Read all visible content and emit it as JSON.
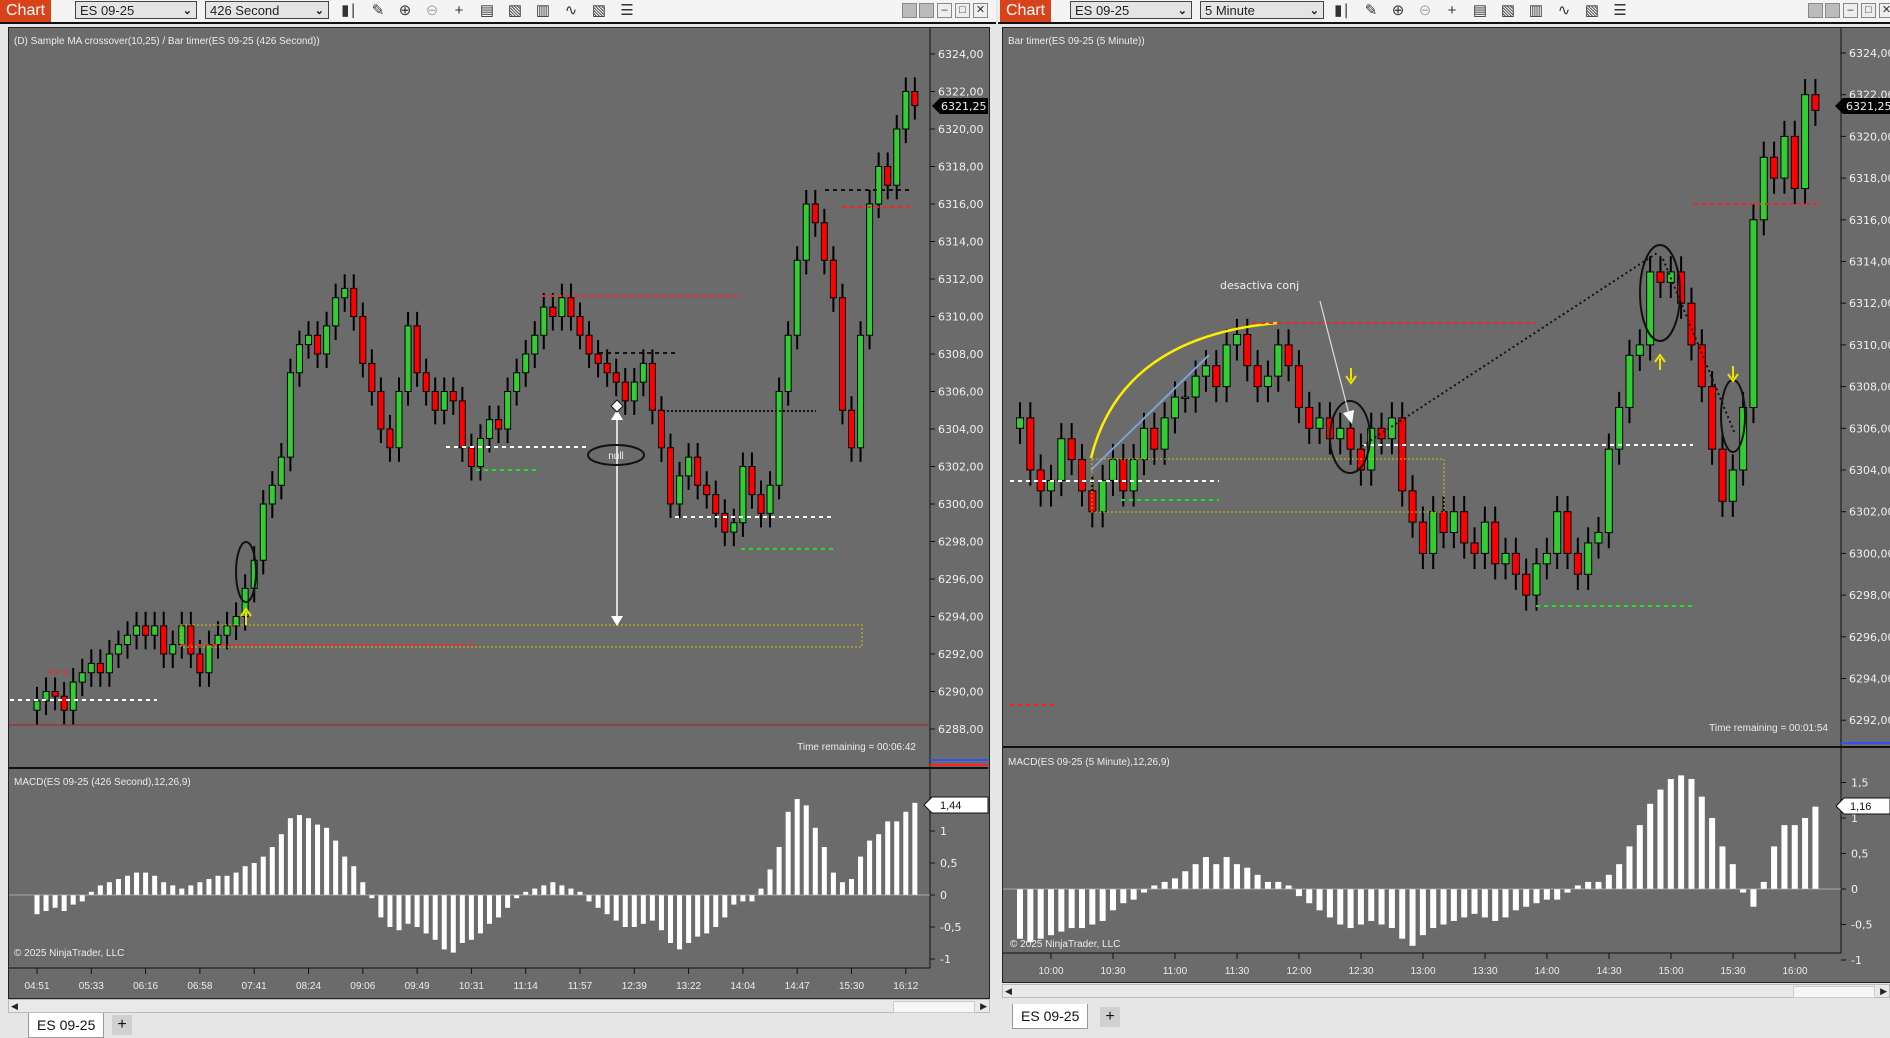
{
  "left": {
    "toolbar": {
      "app": "Chart",
      "instrument": "ES 09-25",
      "interval": "426 Second"
    },
    "title": "(D) Sample MA crossover(10,25) / Bar timer(ES 09-25 (426 Second))",
    "time_remaining": "Time remaining = 00:06:42",
    "macd_title": "MACD(ES 09-25 (426 Second),12,26,9)",
    "copyright": "© 2025 NinjaTrader, LLC",
    "last_price": "6321,25",
    "macd_last": "1,44",
    "annotation": "null",
    "tab": "ES 09-25",
    "add_tab": "+",
    "price_ticks": [
      "6324,00",
      "6322,00",
      "6320,00",
      "6318,00",
      "6316,00",
      "6314,00",
      "6312,00",
      "6310,00",
      "6308,00",
      "6306,00",
      "6304,00",
      "6302,00",
      "6300,00",
      "6298,00",
      "6296,00",
      "6294,00",
      "6292,00",
      "6290,00",
      "6288,00"
    ],
    "macd_ticks": [
      "1",
      "0,5",
      "0",
      "-0,5",
      "-1"
    ],
    "time_ticks": [
      "04:51",
      "05:33",
      "06:16",
      "06:58",
      "07:41",
      "08:24",
      "09:06",
      "09:49",
      "10:31",
      "11:14",
      "11:57",
      "12:39",
      "13:22",
      "14:04",
      "14:47",
      "15:30",
      "16:12"
    ],
    "closes": [
      6289.5,
      6290,
      6289.75,
      6289,
      6290.5,
      6291,
      6291.5,
      6291,
      6292,
      6292.5,
      6293,
      6293.5,
      6293,
      6293.5,
      6292,
      6292.5,
      6293.5,
      6292,
      6291,
      6292.5,
      6293,
      6293.5,
      6294,
      6295.5,
      6297,
      6300,
      6301,
      6302.5,
      6307,
      6308.5,
      6309,
      6308,
      6309.5,
      6311,
      6311.5,
      6310,
      6307.5,
      6306,
      6304,
      6303,
      6306,
      6309.5,
      6307,
      6306,
      6305,
      6306,
      6305.5,
      6303,
      6302,
      6303.5,
      6304.5,
      6304,
      6306,
      6307,
      6308,
      6309,
      6310.5,
      6310,
      6311,
      6310,
      6309,
      6308,
      6307.5,
      6307,
      6306.5,
      6305.5,
      6306.5,
      6307.5,
      6305,
      6303,
      6300,
      6301.5,
      6302.5,
      6301,
      6300.5,
      6299.5,
      6298.5,
      6299,
      6302,
      6300.5,
      6299.5,
      6301,
      6306,
      6309,
      6313,
      6316,
      6315,
      6313,
      6311,
      6305,
      6303,
      6309,
      6316,
      6318,
      6317,
      6320,
      6322,
      6321.25
    ],
    "macd": [
      -0.3,
      -0.25,
      -0.2,
      -0.25,
      -0.15,
      -0.1,
      0.05,
      0.15,
      0.2,
      0.25,
      0.3,
      0.35,
      0.35,
      0.3,
      0.2,
      0.15,
      0.1,
      0.15,
      0.2,
      0.25,
      0.3,
      0.3,
      0.35,
      0.45,
      0.5,
      0.6,
      0.75,
      0.95,
      1.2,
      1.25,
      1.2,
      1.1,
      1.05,
      0.85,
      0.6,
      0.45,
      0.2,
      -0.05,
      -0.35,
      -0.5,
      -0.55,
      -0.45,
      -0.5,
      -0.6,
      -0.7,
      -0.85,
      -0.9,
      -0.75,
      -0.7,
      -0.6,
      -0.45,
      -0.35,
      -0.2,
      -0.05,
      0.05,
      0.1,
      0.15,
      0.2,
      0.15,
      0.1,
      0.05,
      -0.1,
      -0.2,
      -0.3,
      -0.4,
      -0.5,
      -0.5,
      -0.45,
      -0.4,
      -0.55,
      -0.75,
      -0.85,
      -0.75,
      -0.65,
      -0.6,
      -0.5,
      -0.35,
      -0.15,
      -0.1,
      -0.1,
      0.1,
      0.4,
      0.75,
      1.3,
      1.5,
      1.4,
      1.05,
      0.75,
      0.35,
      0.2,
      0.25,
      0.6,
      0.85,
      0.95,
      1.15,
      1.15,
      1.3,
      1.44
    ]
  },
  "right": {
    "toolbar": {
      "app": "Chart",
      "instrument": "ES 09-25",
      "interval": "5 Minute"
    },
    "title": "Bar timer(ES 09-25 (5 Minute))",
    "time_remaining": "Time remaining = 00:01:54",
    "macd_title": "MACD(ES 09-25 (5 Minute),12,26,9)",
    "copyright": "© 2025 NinjaTrader, LLC",
    "last_price": "6321,25",
    "macd_last": "1,16",
    "annotation": "desactiva conj",
    "tab": "ES 09-25",
    "add_tab": "+",
    "price_ticks": [
      "6324,00",
      "6322,00",
      "6320,00",
      "6318,00",
      "6316,00",
      "6314,00",
      "6312,00",
      "6310,00",
      "6308,00",
      "6306,00",
      "6304,00",
      "6302,00",
      "6300,00",
      "6298,00",
      "6296,00",
      "6294,00",
      "6292,00"
    ],
    "macd_ticks": [
      "1,5",
      "1",
      "0,5",
      "0",
      "-0,5",
      "-1"
    ],
    "time_ticks": [
      "10:00",
      "10:30",
      "11:00",
      "11:30",
      "12:00",
      "12:30",
      "13:00",
      "13:30",
      "14:00",
      "14:30",
      "15:00",
      "15:30",
      "16:00"
    ],
    "closes": [
      6306.5,
      6304,
      6303,
      6303.5,
      6305.5,
      6304.5,
      6303,
      6302,
      6303.5,
      6304.5,
      6303,
      6304.5,
      6306,
      6305,
      6306.5,
      6307.5,
      6307.5,
      6308.5,
      6309,
      6308,
      6310,
      6310.5,
      6309,
      6308,
      6308.5,
      6310,
      6309,
      6307,
      6306,
      6306.5,
      6305.5,
      6306,
      6305,
      6304,
      6306,
      6305.5,
      6306.5,
      6303,
      6301.5,
      6300,
      6302,
      6301,
      6302,
      6300.5,
      6300,
      6301.5,
      6299.5,
      6300,
      6299,
      6298,
      6299.5,
      6300,
      6302,
      6300,
      6299,
      6300.5,
      6301,
      6305,
      6307,
      6309.5,
      6310,
      6313.5,
      6313,
      6313.5,
      6312,
      6310,
      6308,
      6305,
      6302.5,
      6304,
      6307,
      6316,
      6319,
      6318,
      6320,
      6317.5,
      6322,
      6321.25
    ],
    "macd": [
      -0.7,
      -0.75,
      -0.7,
      -0.65,
      -0.6,
      -0.55,
      -0.55,
      -0.5,
      -0.45,
      -0.3,
      -0.2,
      -0.15,
      -0.05,
      0.05,
      0.1,
      0.15,
      0.25,
      0.35,
      0.45,
      0.35,
      0.45,
      0.35,
      0.3,
      0.2,
      0.1,
      0.1,
      0.05,
      -0.1,
      -0.2,
      -0.3,
      -0.4,
      -0.5,
      -0.55,
      -0.5,
      -0.45,
      -0.5,
      -0.55,
      -0.7,
      -0.8,
      -0.65,
      -0.55,
      -0.5,
      -0.45,
      -0.4,
      -0.35,
      -0.4,
      -0.45,
      -0.4,
      -0.3,
      -0.25,
      -0.2,
      -0.15,
      -0.15,
      -0.05,
      0.05,
      0.1,
      0.1,
      0.2,
      0.35,
      0.6,
      0.9,
      1.2,
      1.4,
      1.55,
      1.6,
      1.55,
      1.3,
      1.0,
      0.6,
      0.35,
      -0.05,
      -0.25,
      0.1,
      0.6,
      0.9,
      0.9,
      1.0,
      1.16
    ]
  },
  "colors": {
    "up": "#32cd32",
    "down": "#ff0000",
    "chart_bg": "#6b6b6b",
    "chart_button": "#d8431c"
  }
}
